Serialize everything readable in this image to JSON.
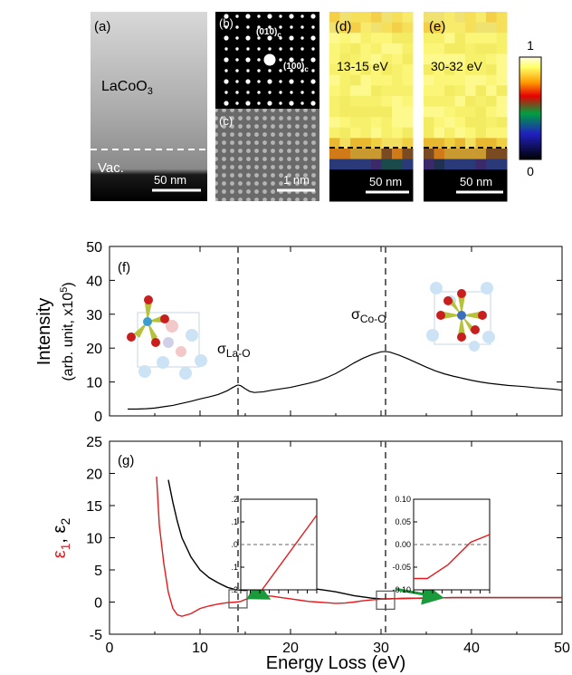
{
  "panels": {
    "a": {
      "label": "(a)",
      "material": "LaCoO",
      "material_sub": "3",
      "vac": "Vac.",
      "scale": "50 nm"
    },
    "b": {
      "label": "(b)",
      "spot1": "(010)",
      "spot1_sub": "c",
      "spot2": "(100)",
      "spot2_sub": "c"
    },
    "c": {
      "label": "(c)",
      "scale": "1 nm"
    },
    "d": {
      "label": "(d)",
      "energy": "13-15 eV",
      "scale": "50 nm"
    },
    "e": {
      "label": "(e)",
      "energy": "30-32 eV",
      "scale": "50 nm"
    },
    "colorbar": {
      "max": "1",
      "min": "0"
    }
  },
  "chart_data": [
    {
      "type": "line",
      "panel_label": "(f)",
      "ylabel_line1": "Intensity",
      "ylabel_line2": "(arb. unit, x10",
      "ylabel_sup": "5",
      "ylabel_end": ")",
      "xlim": [
        0,
        50
      ],
      "ylim": [
        0,
        50
      ],
      "yticks": [
        0,
        10,
        20,
        30,
        40,
        50
      ],
      "xticks": [
        0,
        10,
        20,
        30,
        40,
        50
      ],
      "dashed_lines_x": [
        14.2,
        30.5
      ],
      "annotations": [
        {
          "sigma": "σ",
          "sub": "La-O"
        },
        {
          "sigma": "σ",
          "sub": "Co-O"
        }
      ],
      "series": [
        {
          "color": "#000000",
          "x": [
            2,
            3,
            4,
            5,
            6,
            7,
            8,
            9,
            10,
            11,
            12,
            13,
            13.5,
            14,
            14.2,
            14.5,
            15,
            15.5,
            16,
            17,
            18,
            19,
            20,
            21,
            22,
            23,
            24,
            25,
            26,
            27,
            28,
            29,
            30,
            30.5,
            31,
            32,
            33,
            34,
            35,
            36,
            37,
            38,
            39,
            40,
            41,
            42,
            43,
            44,
            45,
            46,
            47,
            48,
            49,
            50
          ],
          "y": [
            2.0,
            2.0,
            2.1,
            2.3,
            2.7,
            3.1,
            3.7,
            4.3,
            5.0,
            5.6,
            6.3,
            7.4,
            8.2,
            8.9,
            9.1,
            8.9,
            8.0,
            7.2,
            6.9,
            7.1,
            7.6,
            8.0,
            8.4,
            9.0,
            9.6,
            10.3,
            11.3,
            12.5,
            14.0,
            15.6,
            17.0,
            18.1,
            18.9,
            19.0,
            18.8,
            17.9,
            16.8,
            15.6,
            14.4,
            13.3,
            12.4,
            11.7,
            11.1,
            10.5,
            10.0,
            9.6,
            9.3,
            9.0,
            8.8,
            8.6,
            8.3,
            8.1,
            7.9,
            7.6
          ]
        }
      ]
    },
    {
      "type": "line",
      "panel_label": "(g)",
      "ylabel_e1": "ε",
      "ylabel_e1_sub": "1",
      "ylabel_sep": ", ",
      "ylabel_e2": "ε",
      "ylabel_e2_sub": "2",
      "xlabel": "Energy Loss (eV)",
      "xlim": [
        0,
        50
      ],
      "ylim": [
        -5,
        25
      ],
      "yticks": [
        -5,
        0,
        5,
        10,
        15,
        20,
        25
      ],
      "xticks": [
        0,
        10,
        20,
        30,
        40,
        50
      ],
      "dashed_lines_x": [
        14.2,
        30.5
      ],
      "series": [
        {
          "color": "#000000",
          "x": [
            6.5,
            7,
            7.5,
            8,
            9,
            10,
            11,
            12,
            13,
            14,
            15,
            16,
            17,
            18,
            19,
            20,
            21,
            22,
            23,
            24,
            25,
            26,
            27,
            28,
            29,
            30,
            31,
            32,
            34,
            36,
            38,
            40,
            42,
            44,
            46,
            48,
            50
          ],
          "y": [
            19.0,
            15.5,
            12.5,
            10.0,
            7.0,
            5.0,
            3.8,
            3.0,
            2.3,
            1.9,
            1.8,
            2.1,
            2.6,
            2.7,
            2.6,
            2.4,
            2.3,
            2.2,
            2.0,
            1.8,
            1.6,
            1.3,
            1.0,
            0.8,
            0.6,
            0.5,
            0.5,
            0.55,
            0.6,
            0.65,
            0.7,
            0.7,
            0.7,
            0.7,
            0.7,
            0.7,
            0.7
          ]
        },
        {
          "color": "#e41a1c",
          "x": [
            5.2,
            5.5,
            6.0,
            6.5,
            7.0,
            7.5,
            8.0,
            9.0,
            10.0,
            11.0,
            12.0,
            13.0,
            14.0,
            14.5,
            15.0,
            16.0,
            17.0,
            18.0,
            19.0,
            20.0,
            21.0,
            22.0,
            23.0,
            24.0,
            25.0,
            26.0,
            27.0,
            28.0,
            29.0,
            30.0,
            31.0,
            32.0,
            34.0,
            36.0,
            38.0,
            40.0,
            42.0,
            44.0,
            46.0,
            48.0,
            50.0
          ],
          "y": [
            19.5,
            12.0,
            6.0,
            1.5,
            -1.0,
            -2.0,
            -2.2,
            -1.8,
            -1.0,
            -0.6,
            -0.3,
            -0.1,
            0.0,
            0.1,
            0.4,
            0.8,
            1.0,
            0.9,
            0.7,
            0.5,
            0.3,
            0.1,
            0.0,
            -0.1,
            -0.2,
            -0.15,
            0.0,
            0.2,
            0.35,
            0.45,
            0.5,
            0.55,
            0.6,
            0.65,
            0.7,
            0.7,
            0.7,
            0.7,
            0.7,
            0.7,
            0.7
          ]
        }
      ],
      "insets": [
        {
          "yticks": [
            ".2",
            ".1",
            ".0",
            ".1",
            ".2"
          ],
          "yvals": [
            0.2,
            0.1,
            0.0,
            -0.1,
            -0.2
          ],
          "ylim": [
            -0.2,
            0.2
          ],
          "line": [
            [
              0.28,
              -0.2
            ],
            [
              1.0,
              0.13
            ]
          ]
        },
        {
          "yticks": [
            "0.10",
            "0.05",
            "0.00",
            "-0.05",
            "-0.10"
          ],
          "yvals": [
            0.1,
            0.05,
            0.0,
            -0.05,
            -0.1
          ],
          "ylim": [
            -0.1,
            0.1
          ],
          "line": [
            [
              0.0,
              -0.075
            ],
            [
              0.18,
              -0.075
            ],
            [
              0.45,
              -0.045
            ],
            [
              0.75,
              0.005
            ],
            [
              1.0,
              0.022
            ]
          ]
        }
      ]
    }
  ]
}
